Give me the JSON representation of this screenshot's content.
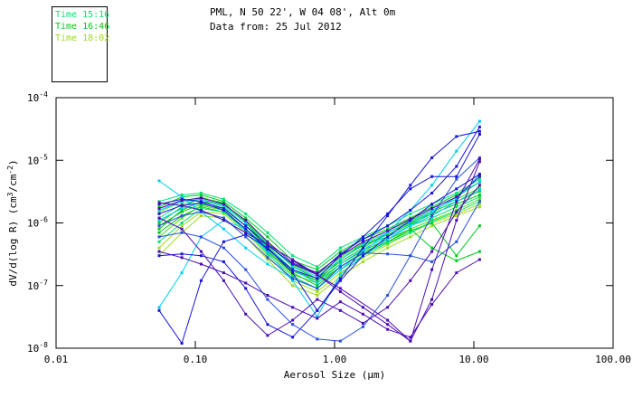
{
  "header": {
    "line1": "PML, N 50 22', W 04 08', Alt 0m",
    "line2": "Data from: 25 Jul 2012"
  },
  "legend": {
    "items": [
      {
        "label": "Time 15:16",
        "color": "#00E673"
      },
      {
        "label": "Time 16:46",
        "color": "#00CC14"
      },
      {
        "label": "Time 18:02",
        "color": "#9BDC1E"
      }
    ]
  },
  "chart_data": {
    "type": "line",
    "x_scale": "log",
    "y_scale": "log",
    "xlabel": "Aerosol Size (μm)",
    "ylabel_parts": {
      "pre": "dV/d(log R) (cm",
      "sup1": "3",
      "mid": "/cm",
      "sup2": "-2",
      "post": ")"
    },
    "xlim": [
      0.01,
      100
    ],
    "ylim": [
      1e-08,
      0.0001
    ],
    "x_ticks": [
      {
        "label": "0.01",
        "value": 0.01
      },
      {
        "label": "0.10",
        "value": 0.1
      },
      {
        "label": "1.00",
        "value": 1.0
      },
      {
        "label": "10.00",
        "value": 10.0
      },
      {
        "label": "100.00",
        "value": 100.0
      }
    ],
    "y_ticks": [
      {
        "base": "10",
        "exp": "-4",
        "value": 0.0001
      },
      {
        "base": "10",
        "exp": "-5",
        "value": 1e-05
      },
      {
        "base": "10",
        "exp": "-6",
        "value": 1e-06
      },
      {
        "base": "10",
        "exp": "-7",
        "value": 1e-07
      },
      {
        "base": "10",
        "exp": "-8",
        "value": 1e-08
      }
    ],
    "grid": false,
    "legend_position": "top-left",
    "marker": "square",
    "x_default": [
      0.055,
      0.08,
      0.11,
      0.16,
      0.23,
      0.33,
      0.5,
      0.75,
      1.1,
      1.6,
      2.4,
      3.5,
      5,
      7.5,
      11
    ],
    "series": [
      {
        "color": "#00E173",
        "y": [
          1.2e-06,
          2e-06,
          2.4e-06,
          1.8e-06,
          9e-07,
          4.5e-07,
          2.2e-07,
          1.6e-07,
          3e-07,
          4.5e-07,
          6e-07,
          9e-07,
          1.2e-06,
          1.8e-06,
          2.6e-06
        ]
      },
      {
        "color": "#00C81E",
        "y": [
          8e-07,
          1.6e-06,
          2.2e-06,
          2e-06,
          1.1e-06,
          5e-07,
          2e-07,
          1.3e-07,
          2.4e-07,
          4e-07,
          7e-07,
          1e-06,
          1.5e-06,
          2.2e-06,
          3.2e-06
        ]
      },
      {
        "color": "#00C81E",
        "y": [
          1.8e-06,
          2.6e-06,
          2.8e-06,
          2.2e-06,
          1.2e-06,
          6e-07,
          2.5e-07,
          1.8e-07,
          3.5e-07,
          5.5e-07,
          8e-07,
          1.2e-06,
          1.8e-06,
          2.8e-06,
          4.5e-06
        ]
      },
      {
        "color": "#50D714",
        "y": [
          6e-07,
          1.2e-06,
          1.9e-06,
          1.6e-06,
          8e-07,
          3.5e-07,
          1.5e-07,
          1.1e-07,
          2e-07,
          3.2e-07,
          5e-07,
          8e-07,
          1.1e-06,
          1.6e-06,
          2.4e-06
        ]
      },
      {
        "color": "#9BDC1E",
        "y": [
          4e-07,
          9e-07,
          1.5e-06,
          1.4e-06,
          7e-07,
          3e-07,
          1.2e-07,
          8e-08,
          1.6e-07,
          2.8e-07,
          4.5e-07,
          7e-07,
          1e-06,
          1.4e-06,
          2e-06
        ]
      },
      {
        "color": "#00E173",
        "y": [
          2.2e-06,
          2.8e-06,
          3e-06,
          2.4e-06,
          1.4e-06,
          7e-07,
          3e-07,
          2e-07,
          4e-07,
          6e-07,
          9e-07,
          1.4e-06,
          2e-06,
          3e-06,
          5e-06
        ]
      },
      {
        "color": "#00C81E",
        "y": [
          1e-06,
          1.8e-06,
          2.5e-06,
          2.1e-06,
          1e-06,
          4.2e-07,
          1.8e-07,
          1.2e-07,
          2.6e-07,
          4.4e-07,
          6.5e-07,
          9.5e-07,
          1.4e-06,
          2e-06,
          2.8e-06
        ]
      },
      {
        "color": "#50D714",
        "y": [
          1.5e-06,
          2.2e-06,
          2.6e-06,
          2e-06,
          1.05e-06,
          4.8e-07,
          2.1e-07,
          1.5e-07,
          2.8e-07,
          4.8e-07,
          7.5e-07,
          1.1e-06,
          1.6e-06,
          2.4e-06,
          3.6e-06
        ]
      },
      {
        "color": "#9BDC1E",
        "y": [
          3e-07,
          7e-07,
          1.3e-06,
          1.2e-06,
          6e-07,
          2.6e-07,
          1e-07,
          7e-08,
          1.4e-07,
          2.4e-07,
          4e-07,
          6e-07,
          9e-07,
          1.3e-06,
          1.8e-06
        ]
      },
      {
        "color": "#00C81E",
        "y": [
          9e-07,
          1.5e-06,
          2e-06,
          1.7e-06,
          9e-07,
          4e-07,
          1.7e-07,
          1.2e-07,
          2.2e-07,
          3.6e-07,
          5.5e-07,
          8e-07,
          4e-07,
          2.5e-07,
          3.5e-07
        ]
      },
      {
        "color": "#00C81E",
        "y": [
          7e-07,
          1.3e-06,
          1.8e-06,
          1.5e-06,
          8e-07,
          3.6e-07,
          1.6e-07,
          1e-07,
          2e-07,
          3.4e-07,
          5e-07,
          7.5e-07,
          1e-06,
          3e-07,
          9e-07
        ]
      },
      {
        "color": "#00E173",
        "y": [
          5e-07,
          1e-06,
          1.7e-06,
          1.5e-06,
          7.5e-07,
          3.2e-07,
          1.4e-07,
          9e-08,
          1.8e-07,
          3e-07,
          4.8e-07,
          7e-07,
          1.05e-06,
          1.5e-06,
          2.2e-06
        ]
      },
      {
        "color": "#00CDF0",
        "y": [
          4.7e-06,
          2.6e-06,
          1.5e-06,
          8e-07,
          4e-07,
          2.2e-07,
          1.3e-07,
          9e-08,
          1.8e-07,
          3.5e-07,
          7e-07,
          1.6e-06,
          4e-06,
          1.4e-05,
          4.2e-05
        ]
      },
      {
        "color": "#00CDF0",
        "y": [
          4.5e-08,
          1.6e-07,
          6e-07,
          1.1e-06,
          8e-07,
          4e-07,
          1.8e-07,
          1.1e-07,
          2.2e-07,
          3.8e-07,
          6e-07,
          9e-07,
          1.3e-06,
          2.2e-06,
          3.4e-06
        ]
      },
      {
        "color": "#00CDF0",
        "y": [
          1.1e-06,
          1.7e-06,
          2.1e-06,
          1.6e-06,
          8e-07,
          3.4e-07,
          1.2e-07,
          3.2e-08,
          1.5e-07,
          3e-07,
          5.5e-07,
          9e-07,
          1.5e-06,
          2.6e-06,
          4.5e-06
        ]
      },
      {
        "color": "#00CDF0",
        "y": [
          1.6e-06,
          2.2e-06,
          2.4e-06,
          1.9e-06,
          1e-06,
          4.6e-07,
          2e-07,
          1.4e-07,
          2.6e-07,
          4.6e-07,
          7e-07,
          1.05e-06,
          1.6e-06,
          2.4e-06,
          6e-06
        ]
      },
      {
        "color": "#1414DC",
        "y": [
          4e-08,
          1.2e-08,
          1.2e-07,
          5e-07,
          6.5e-07,
          4e-07,
          1.6e-07,
          4e-08,
          1.2e-07,
          3e-07,
          6e-07,
          1.1e-06,
          2e-06,
          3.5e-06,
          6e-06
        ]
      },
      {
        "color": "#1414DC",
        "y": [
          3e-07,
          3.2e-07,
          3e-07,
          2.4e-07,
          9e-08,
          2.4e-08,
          1.5e-08,
          4e-08,
          1.3e-07,
          4e-07,
          1.3e-06,
          4e-06,
          1.1e-05,
          2.4e-05,
          2.9e-05
        ]
      },
      {
        "color": "#1414DC",
        "y": [
          1.4e-06,
          1.9e-06,
          2.1e-06,
          1.6e-06,
          8e-07,
          3.8e-07,
          1.8e-07,
          1.3e-07,
          3e-07,
          6e-07,
          1.4e-06,
          3.5e-06,
          5.5e-06,
          5.5e-06,
          2.6e-05
        ]
      },
      {
        "color": "#2850DC",
        "y": [
          6e-07,
          7e-07,
          6e-07,
          4e-07,
          1.8e-07,
          6e-08,
          2.4e-08,
          1.4e-08,
          1.3e-08,
          2.2e-08,
          7e-08,
          3e-07,
          1.3e-06,
          5e-06,
          1.1e-05
        ]
      },
      {
        "color": "#2850DC",
        "y": [
          9e-07,
          1.3e-06,
          1.5e-06,
          1.2e-06,
          6e-07,
          2.8e-07,
          1.3e-07,
          9e-08,
          2e-07,
          3.3e-07,
          3.2e-07,
          3e-07,
          2.4e-07,
          5e-07,
          2.2e-06
        ]
      },
      {
        "color": "#1414DC",
        "y": [
          2e-06,
          2.4e-06,
          2.2e-06,
          1.7e-06,
          9e-07,
          4.4e-07,
          2.2e-07,
          1.5e-07,
          3.2e-07,
          5.5e-07,
          9e-07,
          1.6e-06,
          3e-06,
          8e-06,
          3.4e-05
        ]
      },
      {
        "color": "#4B0AB4",
        "y": [
          2.1e-06,
          1.9e-06,
          1.6e-06,
          1.1e-06,
          7e-07,
          4.5e-07,
          2.6e-07,
          1.5e-07,
          8e-08,
          4.5e-08,
          2.4e-08,
          1.3e-08,
          6e-08,
          1.1e-06,
          9.5e-06
        ]
      },
      {
        "color": "#4B0AB4",
        "y": [
          1.2e-06,
          8e-07,
          3.5e-07,
          1.2e-07,
          3.5e-08,
          1.6e-08,
          2.8e-08,
          6e-08,
          4e-08,
          2.5e-08,
          4.5e-08,
          1.2e-07,
          3.5e-07,
          1.5e-06,
          4e-06
        ]
      },
      {
        "color": "#4B0AB4",
        "y": [
          3.5e-07,
          2.8e-07,
          2.2e-07,
          1.6e-07,
          1.1e-07,
          7e-08,
          4.5e-08,
          3e-08,
          5.5e-08,
          3.5e-08,
          2e-08,
          1.5e-08,
          5e-08,
          1.6e-07,
          2.6e-07
        ]
      },
      {
        "color": "#4B0AB4",
        "y": [
          1.7e-06,
          2.3e-06,
          2.5e-06,
          2e-06,
          1.1e-06,
          5e-07,
          2.3e-07,
          1.6e-07,
          3e-07,
          5e-07,
          7.5e-07,
          1.15e-06,
          1.7e-06,
          2.6e-06,
          5.5e-06
        ]
      },
      {
        "color": "#4B0AB4",
        "x": [
          0.5,
          1.1,
          2.4,
          3.5,
          5,
          7.5,
          11
        ],
        "y": [
          2.5e-07,
          9e-08,
          2.8e-08,
          1.3e-08,
          1.8e-07,
          2.2e-06,
          1.05e-05
        ]
      }
    ]
  }
}
